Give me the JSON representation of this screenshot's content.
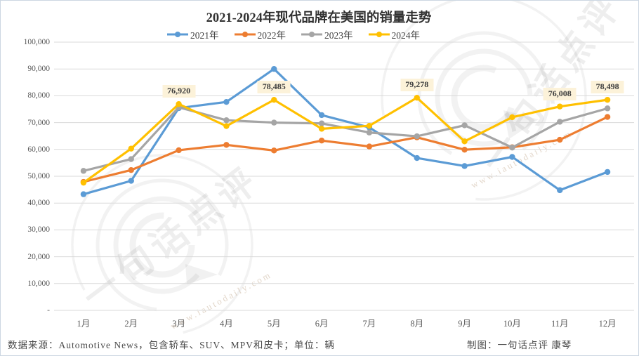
{
  "watermark": {
    "stamp_text": "一句话点评",
    "url_text": "www.iautodaily.com"
  },
  "chart_data": {
    "type": "line",
    "title": "2021-2024年现代品牌在美国的销量走势",
    "categories": [
      "1月",
      "2月",
      "3月",
      "4月",
      "5月",
      "6月",
      "7月",
      "8月",
      "9月",
      "10月",
      "11月",
      "12月"
    ],
    "series": [
      {
        "name": "2021年",
        "color": "#5B9BD5",
        "values": [
          43300,
          48300,
          75400,
          77700,
          90000,
          72800,
          68200,
          56800,
          53800,
          57200,
          44800,
          51600
        ]
      },
      {
        "name": "2022年",
        "color": "#ED7D31",
        "values": [
          47900,
          52300,
          59700,
          61700,
          59600,
          63300,
          61100,
          64500,
          59900,
          60800,
          63600,
          72100
        ]
      },
      {
        "name": "2023年",
        "color": "#A5A5A5",
        "values": [
          52000,
          56400,
          75700,
          70900,
          70000,
          69700,
          66300,
          64900,
          69000,
          60700,
          70300,
          75300
        ]
      },
      {
        "name": "2024年",
        "color": "#FFC000",
        "values": [
          47600,
          60300,
          76920,
          68700,
          78485,
          67700,
          68800,
          79278,
          63000,
          72000,
          76008,
          78498
        ],
        "labels": {
          "2": "76,920",
          "4": "78,485",
          "7": "79,278",
          "10": "76,008",
          "11": "78,498"
        }
      }
    ],
    "ylim": [
      0,
      100000
    ],
    "ytick_step": 10000,
    "ytick_labels": [
      "-",
      "10,000",
      "20,000",
      "30,000",
      "40,000",
      "50,000",
      "60,000",
      "70,000",
      "80,000",
      "90,000",
      "100,000"
    ],
    "grid": true,
    "legend_position": "top",
    "gridline_color": "#D9D9D9",
    "label_bg_color": "#FCF2D9"
  },
  "footer": {
    "source": "数据来源：Automotive News，包含轿车、SUV、MPV和皮卡；单位：辆",
    "credit": "制图：一句话点评  康琴"
  }
}
